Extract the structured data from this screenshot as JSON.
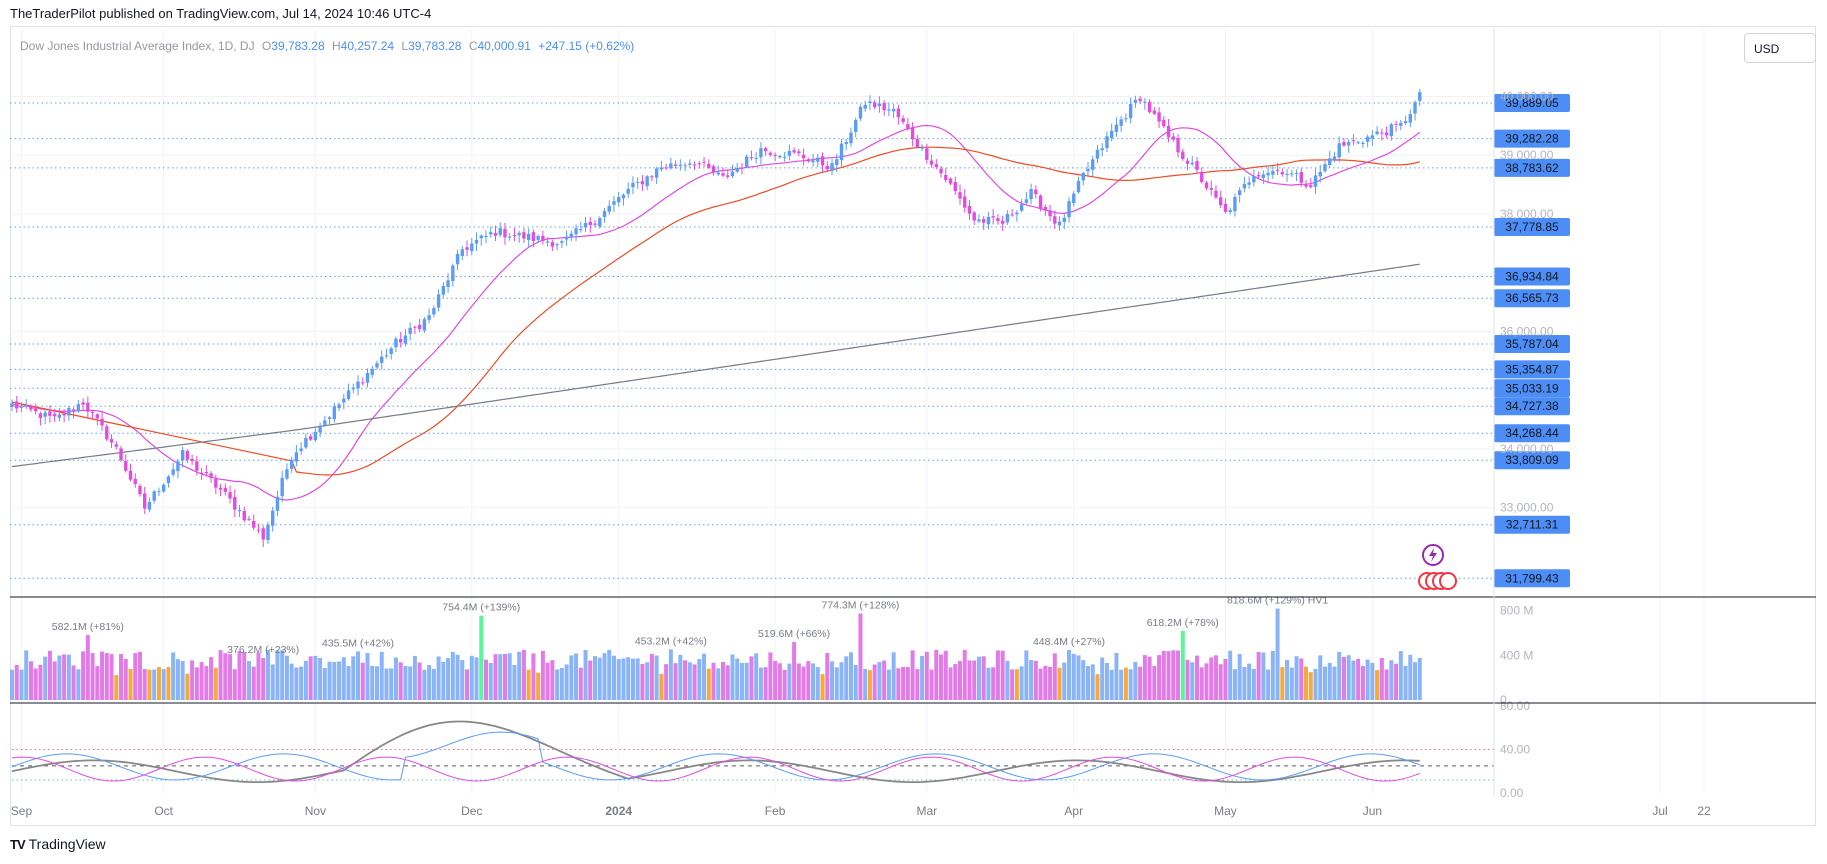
{
  "header": {
    "publisher": "TheTraderPilot published on TradingView.com, Jul 14, 2024 10:46 UTC-4"
  },
  "legend": {
    "symbol": "Dow Jones Industrial Average Index, 1D, DJ",
    "o_label": "O",
    "open": "39,783.28",
    "h_label": "H",
    "high": "40,257.24",
    "l_label": "L",
    "low": "39,783.28",
    "c_label": "C",
    "close": "40,000.91",
    "change": "+247.15 (+0.62%)"
  },
  "currency_button": "USD",
  "footer": {
    "brand": "TradingView",
    "logo": "TV"
  },
  "colors": {
    "up": "#5b9cf6",
    "down": "#e04de0",
    "vol_high": "#5df59a",
    "vol_low": "#f7a93a",
    "ma20": "#e14be0",
    "ma50": "#f04b23",
    "ma200": "#787b86",
    "level_line": "#4c8df6",
    "osc_signal": "#888888"
  },
  "chart_data": [
    {
      "type": "candlestick",
      "title": "Dow Jones Industrial Average Index, 1D, DJ",
      "x_tick_labels": [
        "Sep",
        "Oct",
        "Nov",
        "Dec",
        "2024",
        "Feb",
        "Mar",
        "Apr",
        "May",
        "Jun",
        "Jul",
        "22"
      ],
      "y_tick_labels": [
        "33,000.00",
        "34,000.00",
        "36,000.00",
        "38,000.00",
        "39,000.00",
        "40,000.00"
      ],
      "y_range": [
        31600,
        40450
      ],
      "anchors": [
        [
          0,
          34750
        ],
        [
          9,
          34500
        ],
        [
          15,
          34800
        ],
        [
          22,
          34000
        ],
        [
          28,
          33000
        ],
        [
          36,
          33900
        ],
        [
          44,
          33300
        ],
        [
          53,
          32500
        ],
        [
          59,
          33900
        ],
        [
          66,
          34500
        ],
        [
          74,
          35200
        ],
        [
          81,
          35800
        ],
        [
          88,
          36250
        ],
        [
          95,
          37400
        ],
        [
          102,
          37700
        ],
        [
          109,
          37600
        ],
        [
          116,
          37500
        ],
        [
          123,
          37900
        ],
        [
          130,
          38400
        ],
        [
          137,
          38800
        ],
        [
          144,
          38900
        ],
        [
          150,
          38600
        ],
        [
          158,
          39100
        ],
        [
          166,
          39000
        ],
        [
          173,
          38800
        ],
        [
          180,
          39900
        ],
        [
          186,
          39750
        ],
        [
          191,
          39200
        ],
        [
          197,
          38600
        ],
        [
          203,
          37900
        ],
        [
          209,
          37850
        ],
        [
          215,
          38350
        ],
        [
          221,
          37800
        ],
        [
          226,
          38650
        ],
        [
          232,
          39400
        ],
        [
          238,
          40000
        ],
        [
          244,
          39300
        ],
        [
          250,
          38700
        ],
        [
          256,
          38000
        ],
        [
          262,
          38700
        ],
        [
          268,
          38750
        ],
        [
          274,
          38500
        ],
        [
          280,
          39150
        ],
        [
          286,
          39300
        ],
        [
          293,
          39500
        ],
        [
          297,
          40000
        ]
      ],
      "moving_averages": [
        {
          "period": 20,
          "color": "#e14be0"
        },
        {
          "period": 50,
          "color": "#f04b23"
        },
        {
          "period": 200,
          "color": "#787b86"
        }
      ],
      "price_levels": [
        "39,889.05",
        "39,282.28",
        "38,783.62",
        "37,778.85",
        "36,934.84",
        "36,565.73",
        "35,787.04",
        "35,354.87",
        "35,033.19",
        "34,727.38",
        "34,268.44",
        "33,809.09",
        "32,711.31",
        "31,799.43"
      ],
      "price_level_values": [
        39889.05,
        39282.28,
        38783.62,
        37778.85,
        36934.84,
        36565.73,
        35787.04,
        35354.87,
        35033.19,
        34727.38,
        34268.44,
        33809.09,
        32711.31,
        31799.43
      ]
    },
    {
      "type": "bar",
      "title": "Volume",
      "y_tick_labels": [
        "800 M",
        "400 M",
        "0"
      ],
      "y_range": [
        0,
        850
      ],
      "base_level": 360,
      "annotations": [
        {
          "label": "582.1M (+81%)",
          "bar": 16,
          "value": 582
        },
        {
          "label": "376.2M (+23%)",
          "bar": 53,
          "value": 376
        },
        {
          "label": "435.5M (+42%)",
          "bar": 73,
          "value": 435
        },
        {
          "label": "754.4M (+139%)",
          "bar": 99,
          "value": 754
        },
        {
          "label": "453.2M (+42%)",
          "bar": 139,
          "value": 453
        },
        {
          "label": "519.6M (+66%)",
          "bar": 165,
          "value": 520
        },
        {
          "label": "774.3M (+128%)",
          "bar": 179,
          "value": 774
        },
        {
          "label": "448.4M (+27%)",
          "bar": 223,
          "value": 448
        },
        {
          "label": "618.2M (+78%)",
          "bar": 247,
          "value": 618
        },
        {
          "label": "818.6M (+129%) HV1",
          "bar": 267,
          "value": 818
        }
      ]
    },
    {
      "type": "line",
      "title": "Oscillator",
      "y_tick_labels": [
        "80.00",
        "40.00",
        "0.00"
      ],
      "y_range": [
        0,
        80
      ],
      "reference_levels": [
        40,
        25,
        12
      ]
    }
  ]
}
